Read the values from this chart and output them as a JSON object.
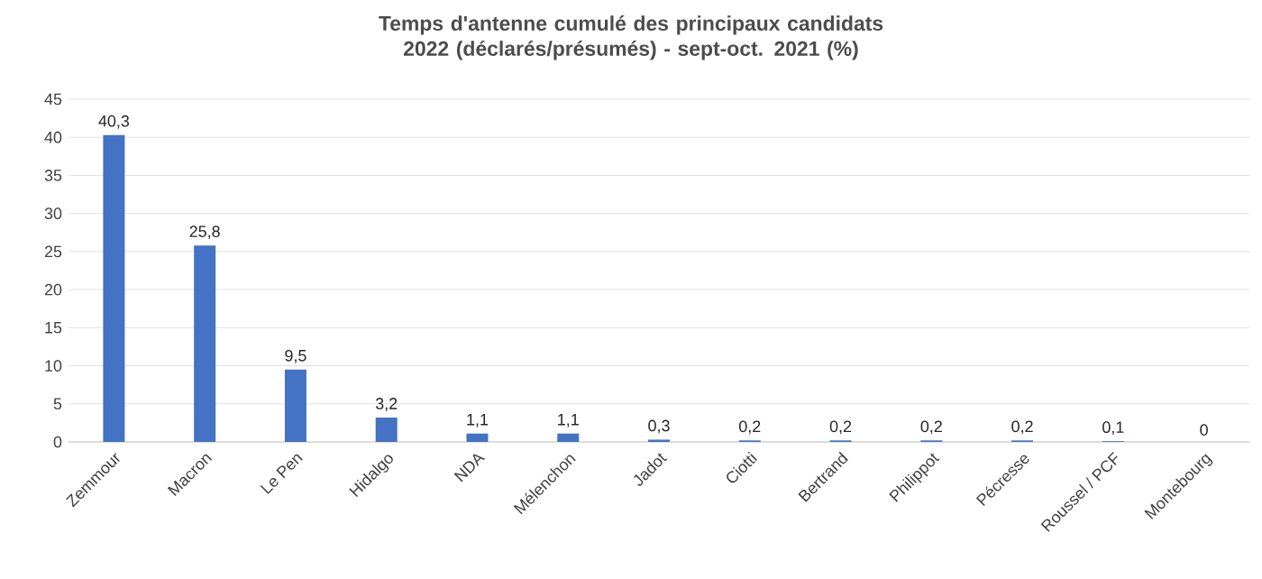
{
  "chart_data": {
    "type": "bar",
    "title": "Temps d'antenne cumulé des principaux candidats 2022 (déclarés/présumés) - sept-oct. 2021 (%)",
    "categories": [
      "Zemmour",
      "Macron",
      "Le Pen",
      "Hidalgo",
      "NDA",
      "Mélenchon",
      "Jadot",
      "Ciotti",
      "Bertrand",
      "Philippot",
      "Pécresse",
      "Roussel / PCF",
      "Montebourg"
    ],
    "values": [
      40.3,
      25.8,
      9.5,
      3.2,
      1.1,
      1.1,
      0.3,
      0.2,
      0.2,
      0.2,
      0.2,
      0.1,
      0
    ],
    "value_labels": [
      "40,3",
      "25,8",
      "9,5",
      "3,2",
      "1,1",
      "1,1",
      "0,3",
      "0,2",
      "0,2",
      "0,2",
      "0,2",
      "0,1",
      "0"
    ],
    "color": "#4472c4",
    "ylim": [
      0,
      45
    ],
    "yticks": [
      0,
      5,
      10,
      15,
      20,
      25,
      30,
      35,
      40,
      45
    ],
    "grid": "y"
  }
}
